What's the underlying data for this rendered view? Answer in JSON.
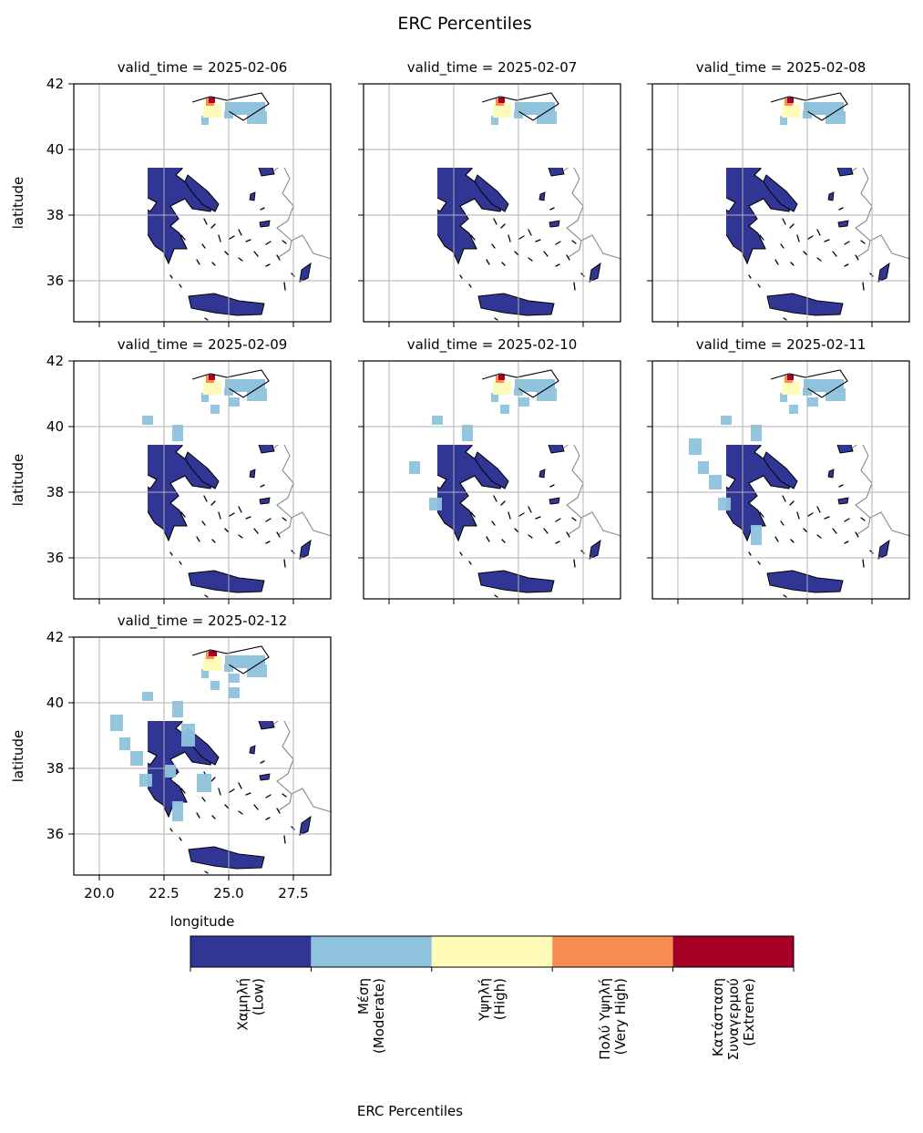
{
  "figure": {
    "title": "ERC Percentiles",
    "xlabel": "longitude",
    "ylabel": "latitude"
  },
  "chart_data": {
    "type": "heatmap",
    "x_ticks": [
      "20.0",
      "22.5",
      "25.0",
      "27.5"
    ],
    "y_ticks": [
      "42",
      "40",
      "38",
      "36"
    ],
    "grid": true,
    "panels": [
      {
        "title": "valid_time = 2025-02-06",
        "moderate_level": 1,
        "moderate_west_level": 0,
        "extreme_level": 1
      },
      {
        "title": "valid_time = 2025-02-07",
        "moderate_level": 1,
        "moderate_west_level": 0,
        "extreme_level": 1
      },
      {
        "title": "valid_time = 2025-02-08",
        "moderate_level": 1,
        "moderate_west_level": 0,
        "extreme_level": 1
      },
      {
        "title": "valid_time = 2025-02-09",
        "moderate_level": 2,
        "moderate_west_level": 1,
        "extreme_level": 1
      },
      {
        "title": "valid_time = 2025-02-10",
        "moderate_level": 2,
        "moderate_west_level": 2,
        "extreme_level": 1
      },
      {
        "title": "valid_time = 2025-02-11",
        "moderate_level": 2,
        "moderate_west_level": 3,
        "extreme_level": 1
      },
      {
        "title": "valid_time = 2025-02-12",
        "moderate_level": 3,
        "moderate_west_level": 3,
        "extreme_level": 2
      }
    ],
    "colorbar": {
      "label": "ERC Percentiles",
      "categories": [
        {
          "lines": [
            "Χαμηλή",
            "(Low)"
          ],
          "color": "#313695"
        },
        {
          "lines": [
            "Μέση",
            "(Moderate)"
          ],
          "color": "#8fc3dd"
        },
        {
          "lines": [
            "Υψηλή",
            "(High)"
          ],
          "color": "#fffbb9"
        },
        {
          "lines": [
            "Πολύ Υψηλή",
            "(Very High)"
          ],
          "color": "#f88d52"
        },
        {
          "lines": [
            "Κατάσταση",
            "Συναγερμού",
            "(Extreme)"
          ],
          "color": "#a50026"
        }
      ]
    }
  }
}
